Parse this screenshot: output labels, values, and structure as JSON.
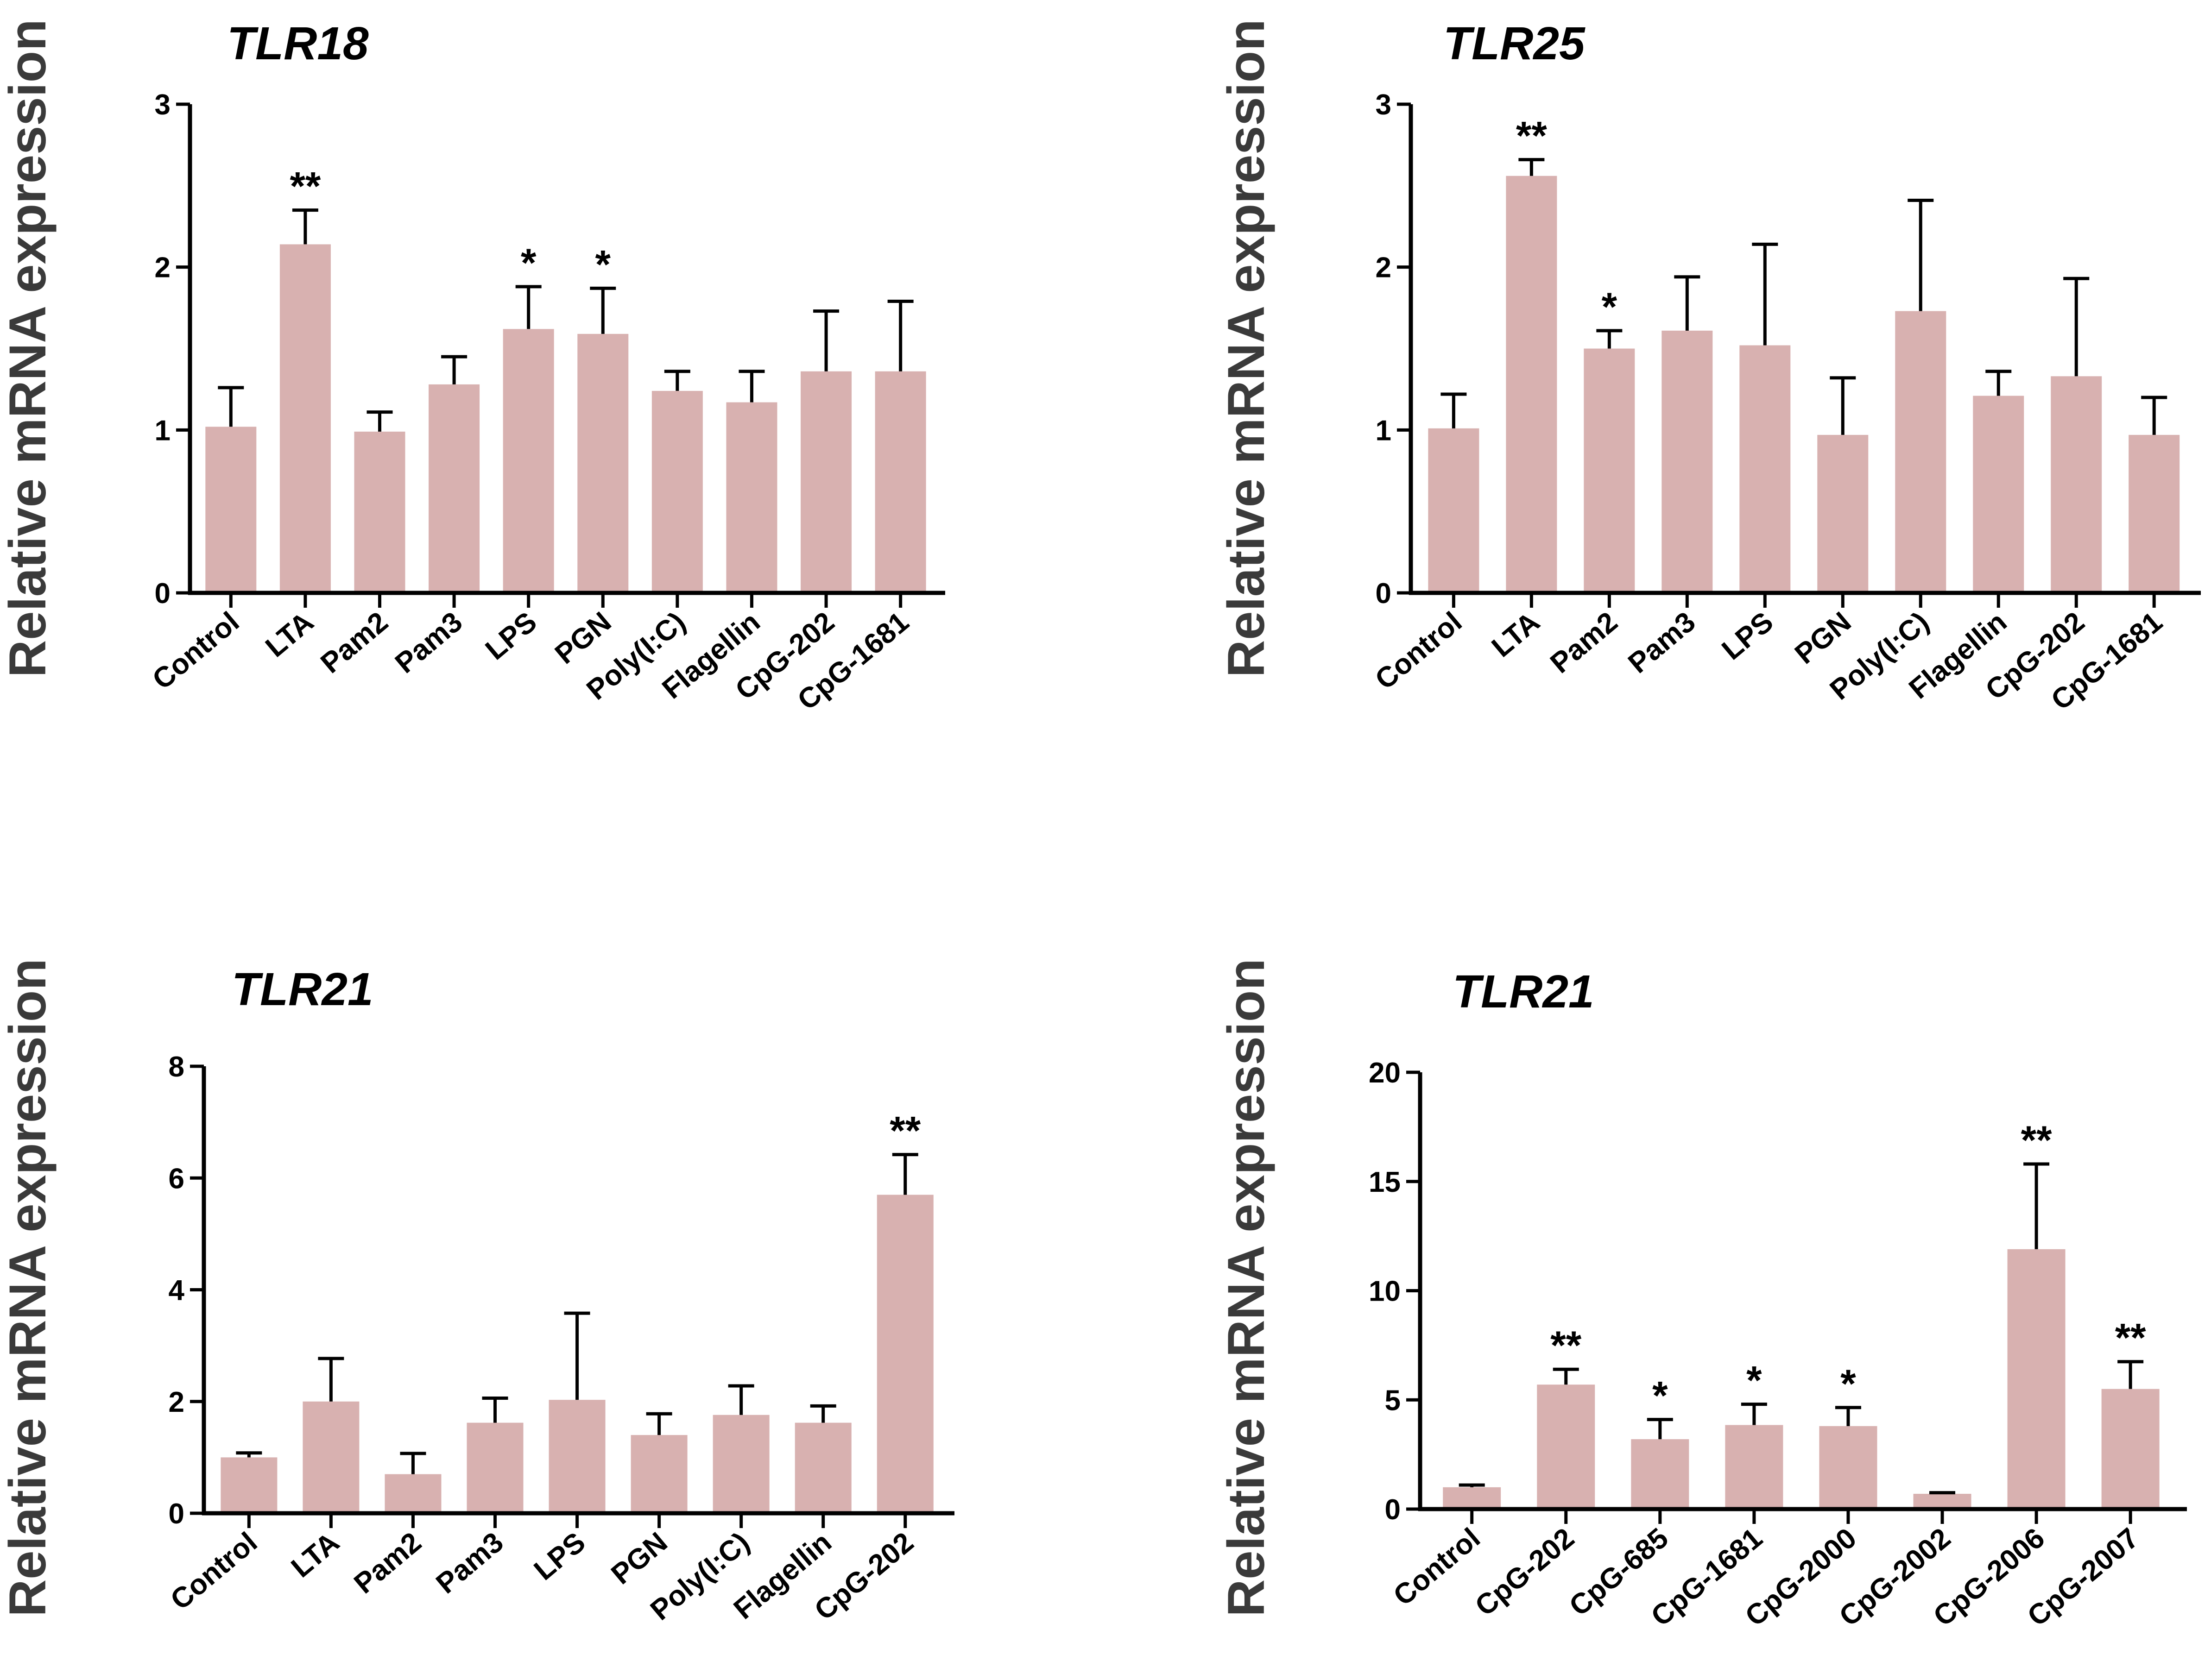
{
  "chart_data": [
    {
      "type": "bar",
      "title": "TLR18",
      "xlabel": "",
      "ylabel": "Relative mRNA expression",
      "ylim": [
        0,
        3
      ],
      "yticks": [
        0,
        1,
        2,
        3
      ],
      "categories": [
        "Control",
        "LTA",
        "Pam2",
        "Pam3",
        "LPS",
        "PGN",
        "Poly(I:C)",
        "Flagellin",
        "CpG-202",
        "CpG-1681"
      ],
      "values": [
        1.02,
        2.14,
        0.99,
        1.28,
        1.62,
        1.59,
        1.24,
        1.17,
        1.36,
        1.36
      ],
      "errors": [
        0.24,
        0.21,
        0.12,
        0.17,
        0.26,
        0.28,
        0.12,
        0.19,
        0.37,
        0.43
      ],
      "significance": [
        "",
        "**",
        "",
        "",
        "*",
        "*",
        "",
        "",
        "",
        ""
      ],
      "bar_color": "#d8b1b0"
    },
    {
      "type": "bar",
      "title": "TLR25",
      "xlabel": "",
      "ylabel": "Relative mRNA expression",
      "ylim": [
        0,
        3
      ],
      "yticks": [
        0,
        1,
        2,
        3
      ],
      "categories": [
        "Control",
        "LTA",
        "Pam2",
        "Pam3",
        "LPS",
        "PGN",
        "Poly(I:C)",
        "Flagellin",
        "CpG-202",
        "CpG-1681"
      ],
      "values": [
        1.01,
        2.56,
        1.5,
        1.61,
        1.52,
        0.97,
        1.73,
        1.21,
        1.33,
        0.97
      ],
      "errors": [
        0.21,
        0.1,
        0.11,
        0.33,
        0.62,
        0.35,
        0.68,
        0.15,
        0.6,
        0.23
      ],
      "significance": [
        "",
        "**",
        "*",
        "",
        "",
        "",
        "",
        "",
        "",
        ""
      ],
      "bar_color": "#d8b1b0"
    },
    {
      "type": "bar",
      "title": "TLR21",
      "xlabel": "",
      "ylabel": "Relative mRNA expression",
      "ylim": [
        0,
        8
      ],
      "yticks": [
        0,
        2,
        4,
        6,
        8
      ],
      "categories": [
        "Control",
        "LTA",
        "Pam2",
        "Pam3",
        "LPS",
        "PGN",
        "Poly(I:C)",
        "Flagellin",
        "CpG-202"
      ],
      "values": [
        1.0,
        2.0,
        0.7,
        1.62,
        2.03,
        1.4,
        1.76,
        1.62,
        5.7
      ],
      "errors": [
        0.08,
        0.77,
        0.37,
        0.44,
        1.55,
        0.38,
        0.52,
        0.3,
        0.72
      ],
      "significance": [
        "",
        "",
        "",
        "",
        "",
        "",
        "",
        "",
        "**"
      ],
      "bar_color": "#d8b1b0"
    },
    {
      "type": "bar",
      "title": "TLR21",
      "xlabel": "",
      "ylabel": "Relative mRNA expression",
      "ylim": [
        0,
        20
      ],
      "yticks": [
        0,
        5,
        10,
        15,
        20
      ],
      "categories": [
        "Control",
        "CpG-202",
        "CpG-685",
        "CpG-1681",
        "CpG-2000",
        "CpG-2002",
        "CpG-2006",
        "CpG-2007"
      ],
      "values": [
        1.0,
        5.7,
        3.2,
        3.85,
        3.8,
        0.7,
        11.9,
        5.5
      ],
      "errors": [
        0.1,
        0.7,
        0.9,
        0.95,
        0.85,
        0.05,
        3.9,
        1.25
      ],
      "significance": [
        "",
        "**",
        "*",
        "*",
        "*",
        "",
        "**",
        "**"
      ],
      "bar_color": "#d8b1b0"
    }
  ]
}
